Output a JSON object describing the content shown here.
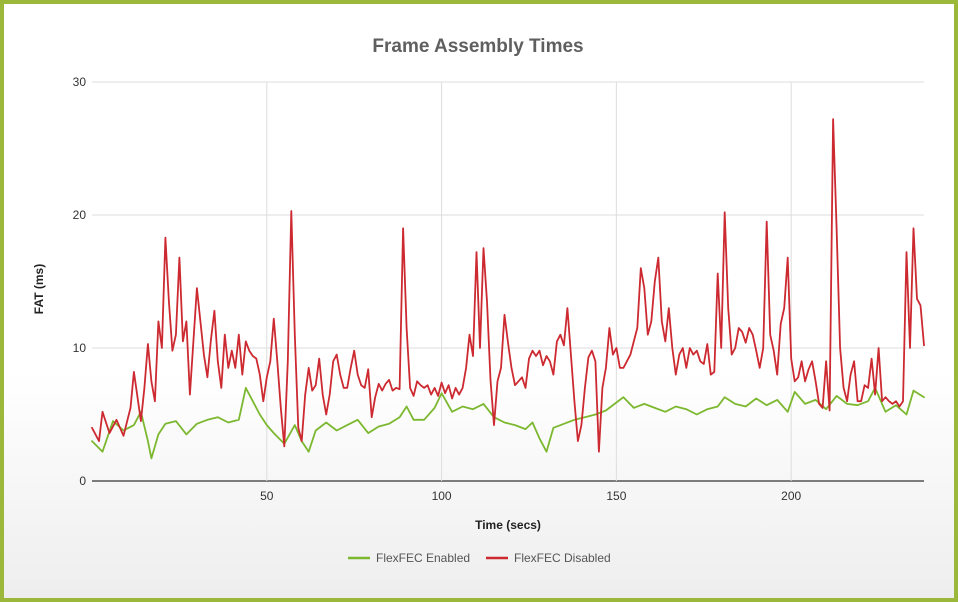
{
  "chart_data": {
    "type": "line",
    "title": "Frame Assembly Times",
    "xlabel": "Time (secs)",
    "ylabel": "FAT (ms)",
    "xlim": [
      0,
      238
    ],
    "ylim": [
      0,
      30
    ],
    "x_ticks": [
      50,
      100,
      150,
      200
    ],
    "y_ticks": [
      0,
      10,
      20,
      30
    ],
    "grid": true,
    "legend_position": "bottom",
    "series": [
      {
        "name": "FlexFEC Enabled",
        "color": "#7cb82f",
        "points": [
          [
            0,
            3
          ],
          [
            3,
            2.2
          ],
          [
            6,
            4.5
          ],
          [
            9,
            3.8
          ],
          [
            12,
            4.2
          ],
          [
            14,
            5.2
          ],
          [
            16,
            3
          ],
          [
            17,
            1.7
          ],
          [
            19,
            3.5
          ],
          [
            21,
            4.3
          ],
          [
            24,
            4.5
          ],
          [
            27,
            3.5
          ],
          [
            30,
            4.3
          ],
          [
            33,
            4.6
          ],
          [
            36,
            4.8
          ],
          [
            39,
            4.4
          ],
          [
            42,
            4.6
          ],
          [
            44,
            7
          ],
          [
            46,
            6
          ],
          [
            48,
            5
          ],
          [
            50,
            4.2
          ],
          [
            52,
            3.6
          ],
          [
            55,
            2.8
          ],
          [
            58,
            4.2
          ],
          [
            60,
            3
          ],
          [
            62,
            2.2
          ],
          [
            64,
            3.8
          ],
          [
            67,
            4.4
          ],
          [
            70,
            3.8
          ],
          [
            73,
            4.2
          ],
          [
            76,
            4.6
          ],
          [
            79,
            3.6
          ],
          [
            82,
            4.1
          ],
          [
            85,
            4.3
          ],
          [
            88,
            4.8
          ],
          [
            90,
            5.6
          ],
          [
            92,
            4.6
          ],
          [
            95,
            4.6
          ],
          [
            98,
            5.5
          ],
          [
            100,
            6.6
          ],
          [
            103,
            5.2
          ],
          [
            106,
            5.6
          ],
          [
            109,
            5.4
          ],
          [
            112,
            5.8
          ],
          [
            115,
            4.8
          ],
          [
            118,
            4.4
          ],
          [
            121,
            4.2
          ],
          [
            124,
            3.9
          ],
          [
            126,
            4.4
          ],
          [
            128,
            3.2
          ],
          [
            130,
            2.2
          ],
          [
            132,
            4
          ],
          [
            135,
            4.3
          ],
          [
            138,
            4.6
          ],
          [
            141,
            4.8
          ],
          [
            144,
            5
          ],
          [
            147,
            5.3
          ],
          [
            150,
            5.9
          ],
          [
            152,
            6.3
          ],
          [
            155,
            5.5
          ],
          [
            158,
            5.8
          ],
          [
            161,
            5.5
          ],
          [
            164,
            5.2
          ],
          [
            167,
            5.6
          ],
          [
            170,
            5.4
          ],
          [
            173,
            5
          ],
          [
            176,
            5.4
          ],
          [
            179,
            5.6
          ],
          [
            181,
            6.3
          ],
          [
            184,
            5.8
          ],
          [
            187,
            5.6
          ],
          [
            190,
            6.2
          ],
          [
            193,
            5.7
          ],
          [
            196,
            6.1
          ],
          [
            199,
            5.2
          ],
          [
            201,
            6.7
          ],
          [
            204,
            5.8
          ],
          [
            207,
            6.1
          ],
          [
            210,
            5.4
          ],
          [
            213,
            6.4
          ],
          [
            216,
            5.8
          ],
          [
            219,
            5.7
          ],
          [
            222,
            6
          ],
          [
            224,
            7
          ],
          [
            227,
            5.2
          ],
          [
            230,
            5.7
          ],
          [
            233,
            5
          ],
          [
            235,
            6.8
          ],
          [
            238,
            6.3
          ]
        ]
      },
      {
        "name": "FlexFEC Disabled",
        "color": "#cc2a30",
        "points": [
          [
            0,
            4
          ],
          [
            2,
            3
          ],
          [
            3,
            5.2
          ],
          [
            5,
            3.6
          ],
          [
            7,
            4.6
          ],
          [
            9,
            3.4
          ],
          [
            11,
            5.5
          ],
          [
            12,
            8.2
          ],
          [
            14,
            4.5
          ],
          [
            15,
            7
          ],
          [
            16,
            10.3
          ],
          [
            17,
            7.5
          ],
          [
            18,
            6
          ],
          [
            19,
            12
          ],
          [
            20,
            10
          ],
          [
            21,
            18.3
          ],
          [
            22,
            13.5
          ],
          [
            23,
            9.8
          ],
          [
            24,
            11
          ],
          [
            25,
            16.8
          ],
          [
            26,
            10.5
          ],
          [
            27,
            12
          ],
          [
            28,
            6.5
          ],
          [
            30,
            14.5
          ],
          [
            32,
            9.5
          ],
          [
            33,
            7.8
          ],
          [
            34,
            10.6
          ],
          [
            35,
            12.8
          ],
          [
            36,
            9
          ],
          [
            37,
            7
          ],
          [
            38,
            11
          ],
          [
            39,
            8.5
          ],
          [
            40,
            9.8
          ],
          [
            41,
            8.5
          ],
          [
            42,
            11
          ],
          [
            43,
            8
          ],
          [
            44,
            10.5
          ],
          [
            45,
            9.8
          ],
          [
            46,
            9.4
          ],
          [
            47,
            9.2
          ],
          [
            48,
            8
          ],
          [
            49,
            6
          ],
          [
            50,
            7.8
          ],
          [
            51,
            9
          ],
          [
            52,
            12.2
          ],
          [
            53,
            9
          ],
          [
            54,
            5.5
          ],
          [
            55,
            2.6
          ],
          [
            56,
            9
          ],
          [
            57,
            20.3
          ],
          [
            58,
            11
          ],
          [
            59,
            4
          ],
          [
            60,
            3
          ],
          [
            61,
            6.5
          ],
          [
            62,
            8.5
          ],
          [
            63,
            6.8
          ],
          [
            64,
            7.2
          ],
          [
            65,
            9.2
          ],
          [
            66,
            6.5
          ],
          [
            67,
            5
          ],
          [
            68,
            6.5
          ],
          [
            69,
            9
          ],
          [
            70,
            9.5
          ],
          [
            71,
            8
          ],
          [
            72,
            7
          ],
          [
            73,
            7
          ],
          [
            74,
            8.5
          ],
          [
            75,
            9.8
          ],
          [
            76,
            8
          ],
          [
            77,
            7.2
          ],
          [
            78,
            7
          ],
          [
            79,
            8.4
          ],
          [
            80,
            4.8
          ],
          [
            81,
            6.3
          ],
          [
            82,
            7.3
          ],
          [
            83,
            6.8
          ],
          [
            84,
            7.3
          ],
          [
            85,
            7.6
          ],
          [
            86,
            6.8
          ],
          [
            87,
            7
          ],
          [
            88,
            6.9
          ],
          [
            89,
            19
          ],
          [
            90,
            11.5
          ],
          [
            91,
            7
          ],
          [
            92,
            6.4
          ],
          [
            93,
            7.5
          ],
          [
            94,
            7.2
          ],
          [
            95,
            7
          ],
          [
            96,
            7.2
          ],
          [
            97,
            6.5
          ],
          [
            98,
            7
          ],
          [
            99,
            6.4
          ],
          [
            100,
            7.4
          ],
          [
            101,
            6.6
          ],
          [
            102,
            7.2
          ],
          [
            103,
            6.2
          ],
          [
            104,
            7
          ],
          [
            105,
            6.5
          ],
          [
            106,
            7
          ],
          [
            107,
            8.5
          ],
          [
            108,
            11
          ],
          [
            109,
            9.4
          ],
          [
            110,
            17.2
          ],
          [
            111,
            10
          ],
          [
            112,
            17.5
          ],
          [
            113,
            13.5
          ],
          [
            114,
            7.6
          ],
          [
            115,
            4.2
          ],
          [
            116,
            7.5
          ],
          [
            117,
            8.5
          ],
          [
            118,
            12.5
          ],
          [
            119,
            10.4
          ],
          [
            120,
            8.5
          ],
          [
            121,
            7.2
          ],
          [
            122,
            7.5
          ],
          [
            123,
            7.8
          ],
          [
            124,
            7
          ],
          [
            125,
            9.2
          ],
          [
            126,
            9.8
          ],
          [
            127,
            9.4
          ],
          [
            128,
            9.8
          ],
          [
            129,
            8.7
          ],
          [
            130,
            9.4
          ],
          [
            131,
            9
          ],
          [
            132,
            8
          ],
          [
            133,
            10.5
          ],
          [
            134,
            11
          ],
          [
            135,
            10.2
          ],
          [
            136,
            13
          ],
          [
            137,
            9.5
          ],
          [
            138,
            6
          ],
          [
            139,
            3
          ],
          [
            140,
            4.2
          ],
          [
            141,
            7
          ],
          [
            142,
            9.3
          ],
          [
            143,
            9.8
          ],
          [
            144,
            9
          ],
          [
            145,
            2.2
          ],
          [
            146,
            7
          ],
          [
            147,
            8.5
          ],
          [
            148,
            11.5
          ],
          [
            149,
            9.5
          ],
          [
            150,
            10
          ],
          [
            151,
            8.5
          ],
          [
            152,
            8.5
          ],
          [
            153,
            9
          ],
          [
            154,
            9.5
          ],
          [
            155,
            10.5
          ],
          [
            156,
            11.5
          ],
          [
            157,
            16
          ],
          [
            158,
            14.5
          ],
          [
            159,
            11
          ],
          [
            160,
            12
          ],
          [
            161,
            15
          ],
          [
            162,
            16.8
          ],
          [
            163,
            12
          ],
          [
            164,
            10.5
          ],
          [
            165,
            13
          ],
          [
            166,
            10
          ],
          [
            167,
            8
          ],
          [
            168,
            9.5
          ],
          [
            169,
            10
          ],
          [
            170,
            8.5
          ],
          [
            171,
            10
          ],
          [
            172,
            9.5
          ],
          [
            173,
            9.8
          ],
          [
            174,
            9
          ],
          [
            175,
            8.8
          ],
          [
            176,
            10.3
          ],
          [
            177,
            8
          ],
          [
            178,
            8.2
          ],
          [
            179,
            15.6
          ],
          [
            180,
            10
          ],
          [
            181,
            20.2
          ],
          [
            182,
            13
          ],
          [
            183,
            9.5
          ],
          [
            184,
            10
          ],
          [
            185,
            11.5
          ],
          [
            186,
            11.2
          ],
          [
            187,
            10.4
          ],
          [
            188,
            11.5
          ],
          [
            189,
            11
          ],
          [
            190,
            9.8
          ],
          [
            191,
            8.5
          ],
          [
            192,
            10
          ],
          [
            193,
            19.5
          ],
          [
            194,
            11
          ],
          [
            195,
            9.8
          ],
          [
            196,
            8
          ],
          [
            197,
            11.8
          ],
          [
            198,
            13
          ],
          [
            199,
            16.8
          ],
          [
            200,
            9.2
          ],
          [
            201,
            7.5
          ],
          [
            202,
            7.8
          ],
          [
            203,
            9
          ],
          [
            204,
            7.5
          ],
          [
            205,
            8.4
          ],
          [
            206,
            9
          ],
          [
            207,
            7.5
          ],
          [
            208,
            5.8
          ],
          [
            209,
            5.5
          ],
          [
            210,
            9
          ],
          [
            211,
            5.3
          ],
          [
            212,
            27.2
          ],
          [
            213,
            19
          ],
          [
            214,
            10
          ],
          [
            215,
            7
          ],
          [
            216,
            6
          ],
          [
            217,
            8
          ],
          [
            218,
            9
          ],
          [
            219,
            6
          ],
          [
            220,
            6
          ],
          [
            221,
            7.2
          ],
          [
            222,
            7
          ],
          [
            223,
            9.2
          ],
          [
            224,
            6.5
          ],
          [
            225,
            10
          ],
          [
            226,
            6
          ],
          [
            227,
            6.3
          ],
          [
            228,
            6
          ],
          [
            229,
            5.8
          ],
          [
            230,
            6
          ],
          [
            231,
            5.6
          ],
          [
            232,
            6
          ],
          [
            233,
            17.2
          ],
          [
            234,
            10
          ],
          [
            235,
            19
          ],
          [
            236,
            13.7
          ],
          [
            237,
            13.2
          ],
          [
            238,
            10.2
          ]
        ]
      }
    ]
  }
}
